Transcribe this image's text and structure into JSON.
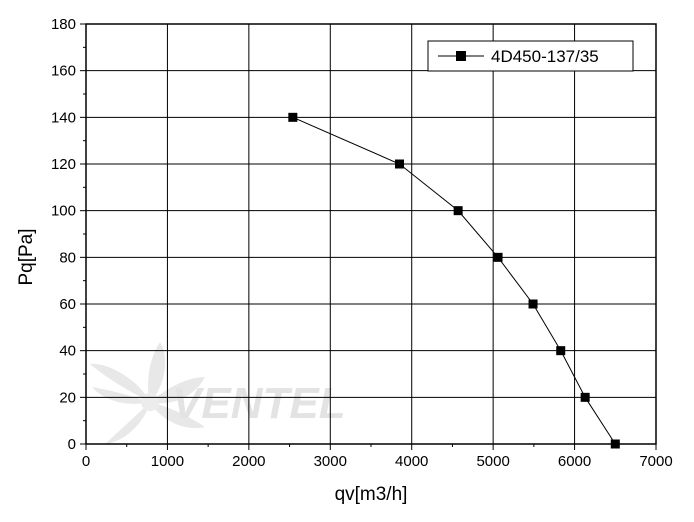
{
  "chart_data": {
    "type": "line",
    "title": "",
    "xlabel": "qv[m3/h]",
    "ylabel": "Pq[Pa]",
    "xlim": [
      0,
      7000
    ],
    "ylim": [
      0,
      180
    ],
    "xticks": [
      0,
      1000,
      2000,
      3000,
      4000,
      5000,
      6000,
      7000
    ],
    "yticks": [
      0,
      20,
      40,
      60,
      80,
      100,
      120,
      140,
      160,
      180
    ],
    "grid": true,
    "legend": "top-right",
    "series": [
      {
        "name": "4D450-137/35",
        "marker": "square",
        "color": "#000000",
        "x": [
          2540,
          3850,
          4570,
          5060,
          5490,
          5830,
          6130,
          6500
        ],
        "y": [
          140,
          120,
          100,
          80,
          60,
          40,
          20,
          0
        ]
      }
    ]
  },
  "watermark": {
    "text": "VENTEL",
    "color": "#e3e3e3"
  }
}
